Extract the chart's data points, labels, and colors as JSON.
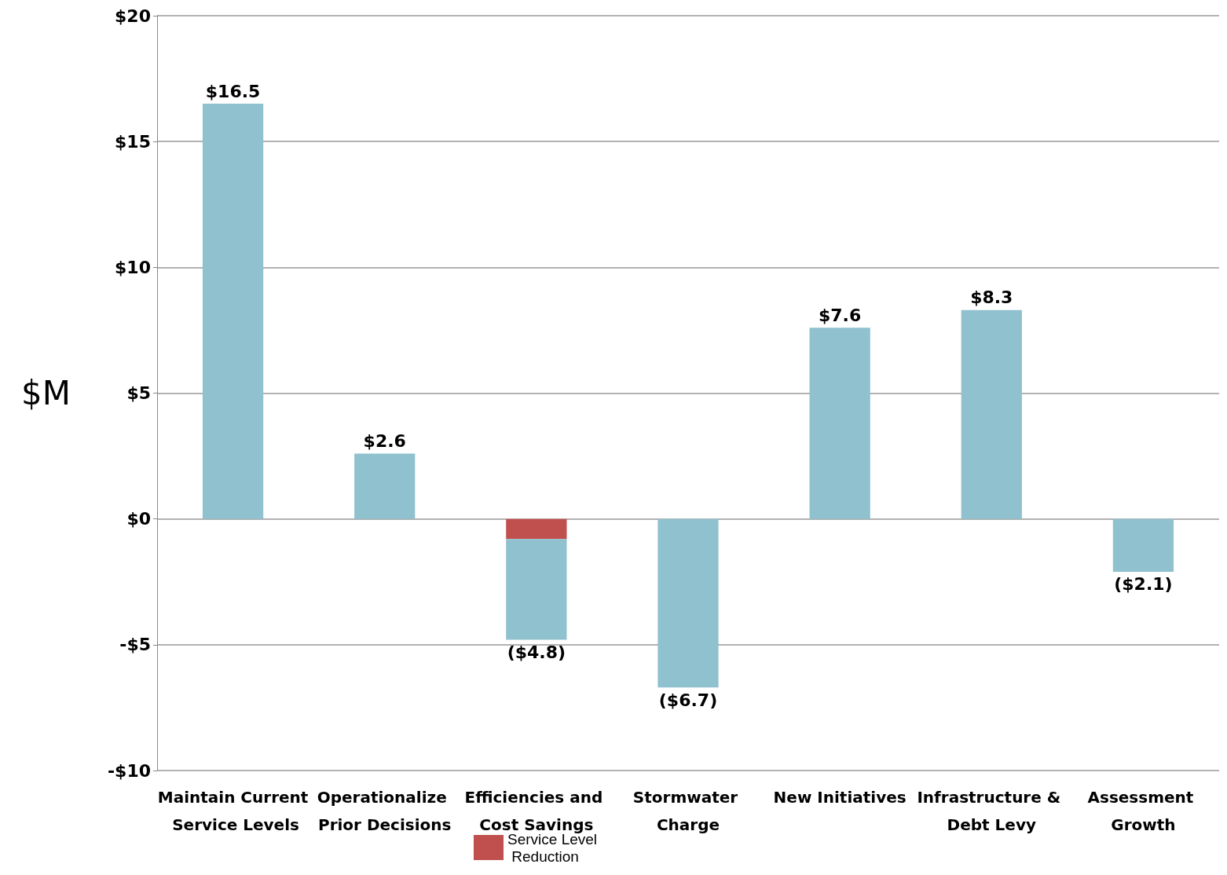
{
  "chart_data": {
    "type": "bar",
    "stacked": true,
    "ylabel": "$M",
    "categories": [
      "Maintain Current Service Levels",
      "Operationalize Prior Decisions",
      "Efficiencies and Cost Savings",
      "Stormwater Charge",
      "New Initiatives",
      "Infrastructure & Debt Levy",
      "Assessment Growth"
    ],
    "series": [
      {
        "name": "Service Level Reduction",
        "color": "#c0504d",
        "values": [
          null,
          null,
          -0.8,
          null,
          null,
          null,
          null
        ]
      },
      {
        "color": "#8fc1ce",
        "values": [
          16.5,
          2.6,
          -4.0,
          -6.7,
          7.6,
          8.3,
          -2.1
        ]
      }
    ],
    "totals": [
      "$16.5",
      "$2.6",
      "($4.8)",
      "($6.7)",
      "$7.6",
      "$8.3",
      "($2.1)"
    ],
    "ylim": [
      -10,
      20
    ],
    "yticks": [
      {
        "value": -10,
        "label": "-$10"
      },
      {
        "value": -5,
        "label": "-$5"
      },
      {
        "value": 0,
        "label": "$0"
      },
      {
        "value": 5,
        "label": "$5"
      },
      {
        "value": 10,
        "label": "$10"
      },
      {
        "value": 15,
        "label": "$15"
      },
      {
        "value": 20,
        "label": "$20"
      }
    ],
    "grid": "y",
    "legend": "bottom"
  }
}
